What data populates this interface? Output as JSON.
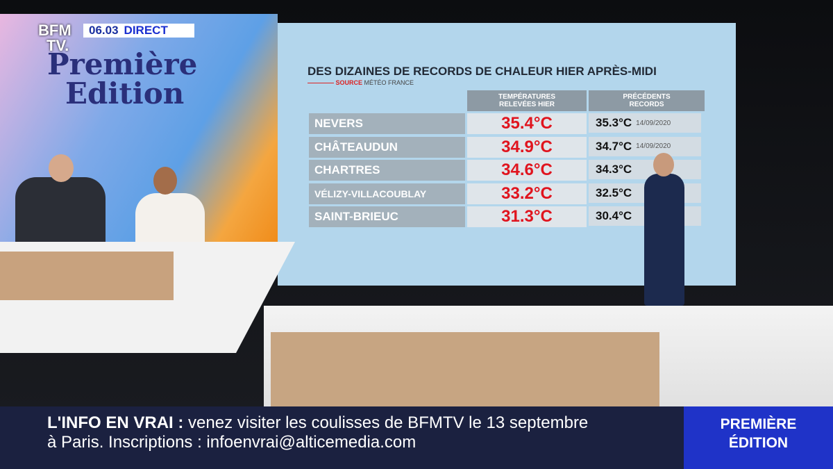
{
  "channel": {
    "logo_top": "BFM",
    "logo_bottom": "TV.",
    "time": "06.03",
    "status": "DIRECT"
  },
  "show_logo": {
    "line1": "Première",
    "line2": "Edition"
  },
  "screen": {
    "title": "DES DIZAINES DE RECORDS DE CHALEUR HIER APRÈS-MIDI",
    "source_label": "SOURCE",
    "source": "MÉTÉO FRANCE",
    "headers": [
      "TEMPÉRATURES RELEVÉES HIER",
      "PRÉCÉDENTS RECORDS"
    ],
    "rows": [
      {
        "city": "NEVERS",
        "temp": "35.4°C",
        "record": "35.3°C",
        "date": "14/09/2020"
      },
      {
        "city": "CHÂTEAUDUN",
        "temp": "34.9°C",
        "record": "34.7°C",
        "date": "14/09/2020"
      },
      {
        "city": "CHARTRES",
        "temp": "34.6°C",
        "record": "34.3°C"
      },
      {
        "city": "VÉLIZY-VILLACOUBLAY",
        "temp": "33.2°C",
        "record": "32.5°C"
      },
      {
        "city": "SAINT-BRIEUC",
        "temp": "31.3°C",
        "record": "30.4°C"
      }
    ]
  },
  "ticker": {
    "label": "L'INFO EN VRAI :",
    "line1": "venez visiter les coulisses de BFMTV le 13 septembre",
    "line2": "à Paris. Inscriptions : infoenvrai@alticemedia.com"
  },
  "program_box": {
    "line1": "PREMIÈRE",
    "line2": "ÉDITION"
  }
}
